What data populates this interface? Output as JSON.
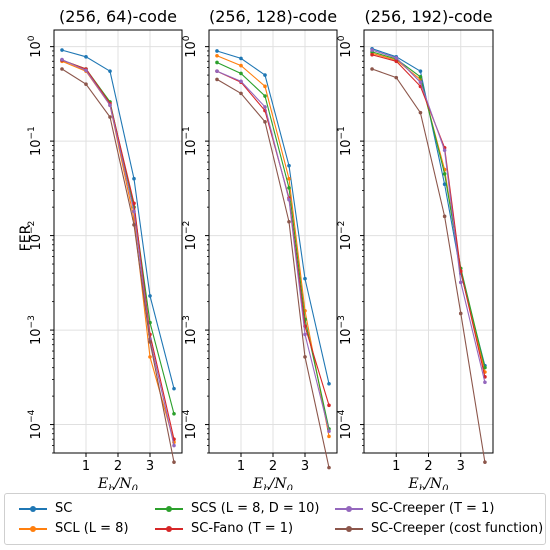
{
  "figure": {
    "ylabel": "FER",
    "xlabel_text": "E_b/N_0"
  },
  "chart_data": [
    {
      "type": "line",
      "title": "(256, 64)-code",
      "xlabel": "E_b/N_0",
      "ylabel": "FER",
      "yscale": "log",
      "xlim": [
        0,
        4
      ],
      "ylim": [
        5e-05,
        1.5
      ],
      "x_ticks": [
        "1",
        "2",
        "3"
      ],
      "y_ticks": [
        "10^0",
        "10^-1",
        "10^-2",
        "10^-3",
        "10^-4"
      ],
      "grid": true,
      "series": [
        {
          "name": "SC",
          "x": [
            0.25,
            1.0,
            1.75,
            2.5,
            3.0,
            3.75
          ],
          "y": [
            0.92,
            0.78,
            0.55,
            0.04,
            0.0023,
            0.00024
          ]
        },
        {
          "name": "SCL (L = 8)",
          "x": [
            0.25,
            1.0,
            1.75,
            2.5,
            3.0,
            3.75
          ],
          "y": [
            0.7,
            0.55,
            0.24,
            0.015,
            0.00052,
            6.5e-05
          ]
        },
        {
          "name": "SCS (L = 8, D = 10)",
          "x": [
            0.25,
            1.0,
            1.75,
            2.5,
            3.0,
            3.75
          ],
          "y": [
            0.72,
            0.58,
            0.26,
            0.02,
            0.0012,
            0.00013
          ]
        },
        {
          "name": "SC-Fano (T = 1)",
          "x": [
            0.25,
            1.0,
            1.75,
            2.5,
            3.0,
            3.75
          ],
          "y": [
            0.72,
            0.58,
            0.25,
            0.022,
            0.0009,
            7e-05
          ]
        },
        {
          "name": "SC-Creeper (T = 1)",
          "x": [
            0.25,
            1.0,
            1.75,
            2.5,
            3.0,
            3.75
          ],
          "y": [
            0.73,
            0.56,
            0.24,
            0.018,
            0.0008,
            6e-05
          ]
        },
        {
          "name": "SC-Creeper (cost function)",
          "x": [
            0.25,
            1.0,
            1.75,
            2.5,
            3.0,
            3.75
          ],
          "y": [
            0.58,
            0.4,
            0.18,
            0.013,
            0.00075,
            4e-05
          ]
        }
      ]
    },
    {
      "type": "line",
      "title": "(256, 128)-code",
      "xlabel": "E_b/N_0",
      "yscale": "log",
      "xlim": [
        0,
        4
      ],
      "ylim": [
        5e-05,
        1.5
      ],
      "x_ticks": [
        "1",
        "2",
        "3"
      ],
      "y_ticks": [
        "10^0",
        "10^-1",
        "10^-2",
        "10^-3",
        "10^-4"
      ],
      "grid": true,
      "series": [
        {
          "name": "SC",
          "x": [
            0.25,
            1.0,
            1.75,
            2.5,
            3.0,
            3.75
          ],
          "y": [
            0.9,
            0.75,
            0.5,
            0.055,
            0.0035,
            0.00027
          ]
        },
        {
          "name": "SCL (L = 8)",
          "x": [
            0.25,
            1.0,
            1.75,
            2.5,
            3.0,
            3.75
          ],
          "y": [
            0.8,
            0.63,
            0.38,
            0.04,
            0.0016,
            7.5e-05
          ]
        },
        {
          "name": "SCS (L = 8, D = 10)",
          "x": [
            0.25,
            1.0,
            1.75,
            2.5,
            3.0,
            3.75
          ],
          "y": [
            0.68,
            0.52,
            0.3,
            0.032,
            0.0013,
            9e-05
          ]
        },
        {
          "name": "SC-Fano (T = 1)",
          "x": [
            0.25,
            1.0,
            1.75,
            2.5,
            3.0,
            3.75
          ],
          "y": [
            0.55,
            0.42,
            0.21,
            0.025,
            0.0011,
            0.00016
          ]
        },
        {
          "name": "SC-Creeper (T = 1)",
          "x": [
            0.25,
            1.0,
            1.75,
            2.5,
            3.0,
            3.75
          ],
          "y": [
            0.55,
            0.43,
            0.23,
            0.024,
            0.0009,
            8.5e-05
          ]
        },
        {
          "name": "SC-Creeper (cost function)",
          "x": [
            0.25,
            1.0,
            1.75,
            2.5,
            3.0,
            3.75
          ],
          "y": [
            0.45,
            0.32,
            0.16,
            0.014,
            0.00052,
            3.5e-05
          ]
        }
      ]
    },
    {
      "type": "line",
      "title": "(256, 192)-code",
      "xlabel": "E_b/N_0",
      "yscale": "log",
      "xlim": [
        0,
        4
      ],
      "ylim": [
        5e-05,
        1.5
      ],
      "x_ticks": [
        "1",
        "2",
        "3"
      ],
      "y_ticks": [
        "10^0",
        "10^-1",
        "10^-2",
        "10^-3",
        "10^-4"
      ],
      "grid": true,
      "series": [
        {
          "name": "SC",
          "x": [
            0.25,
            1.0,
            1.75,
            2.5,
            3.0,
            3.75
          ],
          "y": [
            0.95,
            0.78,
            0.55,
            0.035,
            0.004,
            0.00042
          ]
        },
        {
          "name": "SCL (L = 8)",
          "x": [
            0.25,
            1.0,
            1.75,
            2.5,
            3.0,
            3.75
          ],
          "y": [
            0.85,
            0.72,
            0.45,
            0.05,
            0.0042,
            0.00036
          ]
        },
        {
          "name": "SCS (L = 8, D = 10)",
          "x": [
            0.25,
            1.0,
            1.75,
            2.5,
            3.0,
            3.75
          ],
          "y": [
            0.88,
            0.74,
            0.48,
            0.045,
            0.0045,
            0.0004
          ]
        },
        {
          "name": "SC-Fano (T = 1)",
          "x": [
            0.25,
            1.0,
            1.75,
            2.5,
            3.0,
            3.75
          ],
          "y": [
            0.82,
            0.7,
            0.38,
            0.085,
            0.0042,
            0.00032
          ]
        },
        {
          "name": "SC-Creeper (T = 1)",
          "x": [
            0.25,
            1.0,
            1.75,
            2.5,
            3.0,
            3.75
          ],
          "y": [
            0.92,
            0.76,
            0.42,
            0.08,
            0.0032,
            0.00028
          ]
        },
        {
          "name": "SC-Creeper (cost function)",
          "x": [
            0.25,
            1.0,
            1.75,
            2.5,
            3.0,
            3.75
          ],
          "y": [
            0.58,
            0.47,
            0.2,
            0.016,
            0.0015,
            4e-05
          ]
        }
      ]
    }
  ],
  "legend": {
    "placement": "bottom",
    "items": [
      {
        "label": "SC",
        "color": "#1f77b4"
      },
      {
        "label": "SCL (L = 8)",
        "color": "#ff7f0e"
      },
      {
        "label": "SCS (L = 8, D = 10)",
        "color": "#2ca02c"
      },
      {
        "label": "SC-Fano (T = 1)",
        "color": "#d62728"
      },
      {
        "label": "SC-Creeper (T = 1)",
        "color": "#9467bd"
      },
      {
        "label": "SC-Creeper (cost function)",
        "color": "#8c564b"
      }
    ]
  }
}
